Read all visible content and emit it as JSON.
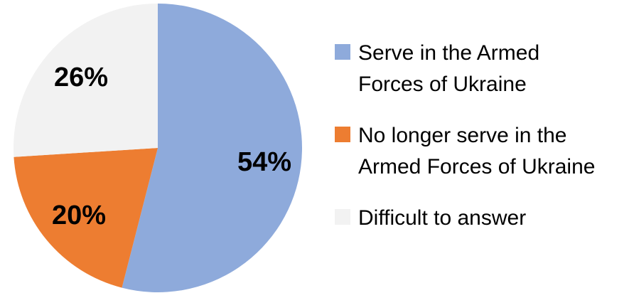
{
  "chart_data": {
    "type": "pie",
    "title": "",
    "start_angle_deg": 0,
    "direction": "clockwise",
    "slices": [
      {
        "name": "Serve in the Armed Forces of Ukraine",
        "value": 54,
        "label": "54%",
        "color": "#8eaadb"
      },
      {
        "name": "No longer serve in the Armed Forces of Ukraine",
        "value": 20,
        "label": "20%",
        "color": "#ed7d31"
      },
      {
        "name": "Difficult to answer",
        "value": 26,
        "label": "26%",
        "color": "#f2f2f2"
      }
    ],
    "legend": {
      "position": "right",
      "items": [
        {
          "lines": [
            "Serve in the Armed",
            "Forces of Ukraine"
          ],
          "color": "#8eaadb"
        },
        {
          "lines": [
            "No longer serve in the",
            "Armed Forces of Ukraine"
          ],
          "color": "#ed7d31"
        },
        {
          "lines": [
            "Difficult to answer"
          ],
          "color": "#f2f2f2"
        }
      ]
    }
  }
}
